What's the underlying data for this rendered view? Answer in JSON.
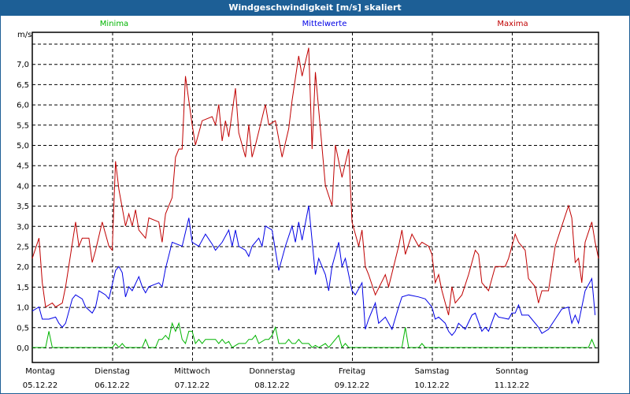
{
  "chart_data": {
    "type": "line",
    "title": "Windgeschwindigkeit [m/s] skaliert",
    "ylabel": "m/s",
    "xlabel": "",
    "x_unit": "hours since Montag 05.12.22 00:00",
    "xlim": [
      0,
      170
    ],
    "ylim": [
      0,
      7.5
    ],
    "grid": true,
    "legend_placement": "top",
    "yticks": [
      0,
      0.5,
      1,
      1.5,
      2,
      2.5,
      3,
      3.5,
      4,
      4.5,
      5,
      5.5,
      6,
      6.5,
      7
    ],
    "ytick_labels": [
      "0,0",
      "0,5",
      "1,0",
      "1,5",
      "2,0",
      "2,5",
      "3,0",
      "3,5",
      "4,0",
      "4,5",
      "5,0",
      "5,5",
      "6,0",
      "6,5",
      "7,0"
    ],
    "xticks": [
      {
        "day": "Montag",
        "date": "05.12.22",
        "hour": 0
      },
      {
        "day": "Dienstag",
        "date": "06.12.22",
        "hour": 24
      },
      {
        "day": "Mittwoch",
        "date": "07.12.22",
        "hour": 48
      },
      {
        "day": "Donnerstag",
        "date": "08.12.22",
        "hour": 72
      },
      {
        "day": "Freitag",
        "date": "09.12.22",
        "hour": 96
      },
      {
        "day": "Samstag",
        "date": "10.12.22",
        "hour": 120
      },
      {
        "day": "Sonntag",
        "date": "11.12.22",
        "hour": 144
      }
    ],
    "series": [
      {
        "name": "Minima",
        "color": "#00b400",
        "points": [
          [
            0,
            0
          ],
          [
            4,
            0
          ],
          [
            5,
            0.4
          ],
          [
            6,
            0
          ],
          [
            24,
            0
          ],
          [
            25,
            0.1
          ],
          [
            26,
            0
          ],
          [
            27,
            0.1
          ],
          [
            28,
            0
          ],
          [
            33,
            0
          ],
          [
            34,
            0.2
          ],
          [
            35,
            0
          ],
          [
            37,
            0
          ],
          [
            38,
            0.2
          ],
          [
            39,
            0.2
          ],
          [
            40,
            0.3
          ],
          [
            41,
            0.2
          ],
          [
            42,
            0.6
          ],
          [
            43,
            0.4
          ],
          [
            44,
            0.6
          ],
          [
            45,
            0.2
          ],
          [
            46,
            0.1
          ],
          [
            47,
            0.4
          ],
          [
            48,
            0.4
          ],
          [
            49,
            0.1
          ],
          [
            50,
            0.2
          ],
          [
            51,
            0.1
          ],
          [
            52,
            0.2
          ],
          [
            55,
            0.2
          ],
          [
            56,
            0.1
          ],
          [
            57,
            0.2
          ],
          [
            58,
            0.1
          ],
          [
            59,
            0.15
          ],
          [
            60,
            0
          ],
          [
            62,
            0.1
          ],
          [
            64,
            0.1
          ],
          [
            65,
            0.2
          ],
          [
            66,
            0.2
          ],
          [
            67,
            0.3
          ],
          [
            68,
            0.1
          ],
          [
            70,
            0.2
          ],
          [
            71,
            0.2
          ],
          [
            72,
            0.3
          ],
          [
            73,
            0.5
          ],
          [
            74,
            0.1
          ],
          [
            76,
            0.1
          ],
          [
            77,
            0.2
          ],
          [
            78,
            0.1
          ],
          [
            79,
            0.1
          ],
          [
            80,
            0.2
          ],
          [
            81,
            0.1
          ],
          [
            83,
            0.1
          ],
          [
            84,
            0
          ],
          [
            85,
            0.05
          ],
          [
            86,
            0
          ],
          [
            88,
            0.1
          ],
          [
            89,
            0
          ],
          [
            90,
            0.1
          ],
          [
            91,
            0.2
          ],
          [
            92,
            0.3
          ],
          [
            93,
            0
          ],
          [
            94,
            0.1
          ],
          [
            95,
            0
          ],
          [
            111,
            0
          ],
          [
            112,
            0.5
          ],
          [
            113,
            0
          ],
          [
            116,
            0
          ],
          [
            117,
            0.1
          ],
          [
            118,
            0
          ],
          [
            167,
            0
          ],
          [
            168,
            0.2
          ],
          [
            169,
            0
          ]
        ]
      },
      {
        "name": "Mittelwerte",
        "color": "#0000e6",
        "points": [
          [
            0,
            0.9
          ],
          [
            2,
            1.0
          ],
          [
            3,
            0.7
          ],
          [
            5,
            0.7
          ],
          [
            7,
            0.75
          ],
          [
            8,
            0.6
          ],
          [
            9,
            0.5
          ],
          [
            10,
            0.6
          ],
          [
            12,
            1.2
          ],
          [
            13,
            1.3
          ],
          [
            15,
            1.2
          ],
          [
            16,
            1.0
          ],
          [
            18,
            0.85
          ],
          [
            19,
            1.0
          ],
          [
            20,
            1.4
          ],
          [
            22,
            1.3
          ],
          [
            23,
            1.2
          ],
          [
            25,
            1.9
          ],
          [
            26,
            2.0
          ],
          [
            27,
            1.85
          ],
          [
            28,
            1.25
          ],
          [
            29,
            1.5
          ],
          [
            30,
            1.4
          ],
          [
            32,
            1.75
          ],
          [
            33,
            1.5
          ],
          [
            34,
            1.35
          ],
          [
            35,
            1.5
          ],
          [
            38,
            1.6
          ],
          [
            39,
            1.5
          ],
          [
            40,
            1.95
          ],
          [
            42,
            2.6
          ],
          [
            45,
            2.5
          ],
          [
            47,
            3.2
          ],
          [
            48,
            2.6
          ],
          [
            50,
            2.5
          ],
          [
            52,
            2.8
          ],
          [
            54,
            2.55
          ],
          [
            55,
            2.4
          ],
          [
            57,
            2.6
          ],
          [
            59,
            2.9
          ],
          [
            60,
            2.5
          ],
          [
            61,
            2.9
          ],
          [
            62,
            2.5
          ],
          [
            64,
            2.4
          ],
          [
            65,
            2.25
          ],
          [
            66,
            2.5
          ],
          [
            68,
            2.7
          ],
          [
            69,
            2.5
          ],
          [
            70,
            3.0
          ],
          [
            72,
            2.9
          ],
          [
            73,
            2.4
          ],
          [
            74,
            1.9
          ],
          [
            76,
            2.5
          ],
          [
            78,
            3.0
          ],
          [
            79,
            2.6
          ],
          [
            80,
            3.1
          ],
          [
            81,
            2.65
          ],
          [
            83,
            3.5
          ],
          [
            85,
            1.8
          ],
          [
            86,
            2.2
          ],
          [
            88,
            1.8
          ],
          [
            89,
            1.4
          ],
          [
            90,
            2.0
          ],
          [
            92,
            2.6
          ],
          [
            93,
            2.0
          ],
          [
            94,
            2.2
          ],
          [
            96,
            1.4
          ],
          [
            97,
            1.3
          ],
          [
            99,
            1.6
          ],
          [
            100,
            0.45
          ],
          [
            101,
            0.7
          ],
          [
            103,
            1.1
          ],
          [
            104,
            0.6
          ],
          [
            106,
            0.75
          ],
          [
            108,
            0.45
          ],
          [
            110,
            1.0
          ],
          [
            111,
            1.25
          ],
          [
            113,
            1.3
          ],
          [
            116,
            1.25
          ],
          [
            118,
            1.2
          ],
          [
            120,
            1.0
          ],
          [
            121,
            0.7
          ],
          [
            122,
            0.75
          ],
          [
            124,
            0.6
          ],
          [
            125,
            0.4
          ],
          [
            126,
            0.3
          ],
          [
            127,
            0.4
          ],
          [
            128,
            0.6
          ],
          [
            130,
            0.45
          ],
          [
            132,
            0.8
          ],
          [
            133,
            0.85
          ],
          [
            135,
            0.4
          ],
          [
            136,
            0.5
          ],
          [
            137,
            0.4
          ],
          [
            139,
            0.85
          ],
          [
            140,
            0.75
          ],
          [
            143,
            0.7
          ],
          [
            144,
            0.85
          ],
          [
            145,
            0.85
          ],
          [
            146,
            1.05
          ],
          [
            147,
            0.8
          ],
          [
            149,
            0.8
          ],
          [
            152,
            0.5
          ],
          [
            153,
            0.35
          ],
          [
            155,
            0.45
          ],
          [
            157,
            0.7
          ],
          [
            159,
            0.95
          ],
          [
            161,
            1.0
          ],
          [
            162,
            0.6
          ],
          [
            163,
            0.8
          ],
          [
            164,
            0.6
          ],
          [
            166,
            1.4
          ],
          [
            168,
            1.7
          ],
          [
            169,
            0.8
          ]
        ]
      },
      {
        "name": "Maxima",
        "color": "#c00000",
        "points": [
          [
            0,
            2.2
          ],
          [
            2,
            2.7
          ],
          [
            3,
            1.6
          ],
          [
            4,
            1.0
          ],
          [
            6,
            1.1
          ],
          [
            7,
            1.0
          ],
          [
            9,
            1.1
          ],
          [
            10,
            1.5
          ],
          [
            13,
            3.1
          ],
          [
            14,
            2.5
          ],
          [
            15,
            2.7
          ],
          [
            17,
            2.7
          ],
          [
            18,
            2.1
          ],
          [
            19,
            2.4
          ],
          [
            21,
            3.1
          ],
          [
            23,
            2.5
          ],
          [
            24,
            2.4
          ],
          [
            25,
            4.6
          ],
          [
            26,
            3.9
          ],
          [
            28,
            3.0
          ],
          [
            29,
            3.3
          ],
          [
            30,
            3.0
          ],
          [
            31,
            3.4
          ],
          [
            32,
            2.9
          ],
          [
            34,
            2.7
          ],
          [
            35,
            3.2
          ],
          [
            38,
            3.1
          ],
          [
            39,
            2.6
          ],
          [
            40,
            3.3
          ],
          [
            42,
            3.7
          ],
          [
            43,
            4.7
          ],
          [
            44,
            4.9
          ],
          [
            45,
            4.9
          ],
          [
            46,
            6.7
          ],
          [
            48,
            5.5
          ],
          [
            49,
            5.0
          ],
          [
            51,
            5.6
          ],
          [
            54,
            5.7
          ],
          [
            55,
            5.5
          ],
          [
            56,
            6.0
          ],
          [
            57,
            5.1
          ],
          [
            58,
            5.6
          ],
          [
            59,
            5.2
          ],
          [
            61,
            6.4
          ],
          [
            62,
            5.3
          ],
          [
            64,
            4.7
          ],
          [
            65,
            5.5
          ],
          [
            66,
            4.7
          ],
          [
            67,
            5.0
          ],
          [
            70,
            6.0
          ],
          [
            71,
            5.5
          ],
          [
            73,
            5.6
          ],
          [
            75,
            4.7
          ],
          [
            77,
            5.4
          ],
          [
            78,
            6.1
          ],
          [
            80,
            7.2
          ],
          [
            81,
            6.7
          ],
          [
            83,
            7.4
          ],
          [
            84,
            4.9
          ],
          [
            85,
            6.8
          ],
          [
            88,
            4.0
          ],
          [
            90,
            3.5
          ],
          [
            91,
            5.0
          ],
          [
            93,
            4.2
          ],
          [
            95,
            4.9
          ],
          [
            96,
            3.1
          ],
          [
            98,
            2.5
          ],
          [
            99,
            2.9
          ],
          [
            100,
            2.0
          ],
          [
            101,
            1.8
          ],
          [
            103,
            1.3
          ],
          [
            106,
            1.8
          ],
          [
            107,
            1.5
          ],
          [
            110,
            2.5
          ],
          [
            111,
            2.9
          ],
          [
            112,
            2.3
          ],
          [
            114,
            2.8
          ],
          [
            116,
            2.5
          ],
          [
            117,
            2.6
          ],
          [
            119,
            2.5
          ],
          [
            120,
            2.3
          ],
          [
            121,
            1.6
          ],
          [
            122,
            1.8
          ],
          [
            123,
            1.4
          ],
          [
            125,
            0.8
          ],
          [
            126,
            1.5
          ],
          [
            127,
            1.1
          ],
          [
            129,
            1.3
          ],
          [
            131,
            1.8
          ],
          [
            133,
            2.4
          ],
          [
            134,
            2.3
          ],
          [
            135,
            1.6
          ],
          [
            137,
            1.4
          ],
          [
            139,
            2.0
          ],
          [
            142,
            2.0
          ],
          [
            143,
            2.2
          ],
          [
            145,
            2.8
          ],
          [
            146,
            2.6
          ],
          [
            148,
            2.4
          ],
          [
            149,
            1.7
          ],
          [
            151,
            1.5
          ],
          [
            152,
            1.1
          ],
          [
            153,
            1.4
          ],
          [
            155,
            1.4
          ],
          [
            157,
            2.5
          ],
          [
            159,
            3.0
          ],
          [
            161,
            3.5
          ],
          [
            162,
            3.2
          ],
          [
            163,
            2.1
          ],
          [
            164,
            2.2
          ],
          [
            165,
            1.6
          ],
          [
            166,
            2.6
          ],
          [
            168,
            3.1
          ],
          [
            169,
            2.6
          ],
          [
            170,
            2.2
          ]
        ]
      }
    ]
  }
}
